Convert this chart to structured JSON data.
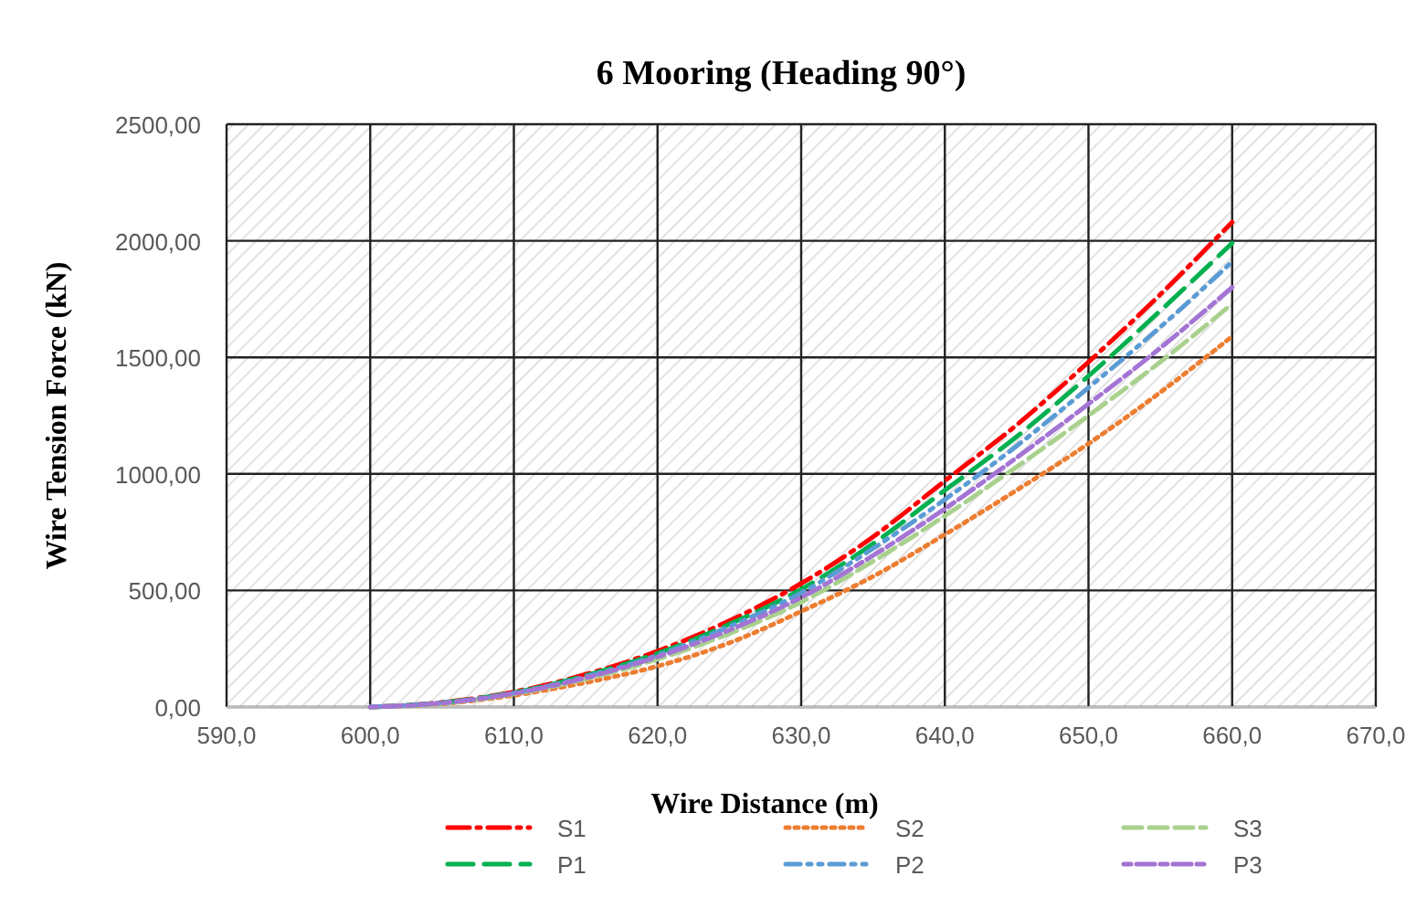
{
  "chart_data": {
    "type": "line",
    "title": "6 Mooring (Heading 90°)",
    "xlabel": "Wire Distance (m)",
    "ylabel": "Wire Tension Force (kN)",
    "x": [
      600,
      605,
      610,
      615,
      620,
      625,
      630,
      635,
      640,
      645,
      650,
      655,
      660
    ],
    "series": [
      {
        "name": "S1",
        "color": "#ff0000",
        "line_style": "dashed",
        "values": [
          0,
          20,
          65,
          140,
          240,
          370,
          530,
          730,
          970,
          1210,
          1480,
          1770,
          2080
        ]
      },
      {
        "name": "S2",
        "color": "#ed7d31",
        "line_style": "dotted",
        "values": [
          0,
          14,
          50,
          105,
          175,
          275,
          410,
          560,
          740,
          930,
          1130,
          1350,
          1590
        ]
      },
      {
        "name": "S3",
        "color": "#a9d18e",
        "line_style": "dashed",
        "values": [
          0,
          16,
          56,
          120,
          205,
          315,
          450,
          625,
          820,
          1030,
          1250,
          1480,
          1730
        ]
      },
      {
        "name": "P1",
        "color": "#00b050",
        "line_style": "dashed",
        "values": [
          0,
          19,
          62,
          135,
          230,
          355,
          505,
          700,
          930,
          1160,
          1420,
          1700,
          1990
        ]
      },
      {
        "name": "P2",
        "color": "#5b9bd5",
        "line_style": "dashed",
        "values": [
          0,
          18,
          60,
          130,
          222,
          345,
          490,
          680,
          890,
          1120,
          1370,
          1630,
          1910
        ]
      },
      {
        "name": "P3",
        "color": "#a374d4",
        "line_style": "dashed",
        "values": [
          0,
          17,
          58,
          125,
          215,
          330,
          470,
          650,
          850,
          1070,
          1300,
          1540,
          1800
        ]
      }
    ],
    "xlim": [
      590,
      670
    ],
    "xticks": [
      {
        "value": 590,
        "label": "590,0"
      },
      {
        "value": 600,
        "label": "600,0"
      },
      {
        "value": 610,
        "label": "610,0"
      },
      {
        "value": 620,
        "label": "620,0"
      },
      {
        "value": 630,
        "label": "630,0"
      },
      {
        "value": 640,
        "label": "640,0"
      },
      {
        "value": 650,
        "label": "650,0"
      },
      {
        "value": 660,
        "label": "660,0"
      },
      {
        "value": 670,
        "label": "670,0"
      }
    ],
    "ylim": [
      0,
      2500
    ],
    "yticks": [
      {
        "value": 0,
        "label": "0,00"
      },
      {
        "value": 500,
        "label": "500,00"
      },
      {
        "value": 1000,
        "label": "1000,00"
      },
      {
        "value": 1500,
        "label": "1500,00"
      },
      {
        "value": 2000,
        "label": "2000,00"
      },
      {
        "value": 2500,
        "label": "2500,00"
      }
    ],
    "grid": true,
    "legend": "bottom",
    "marker": "none"
  }
}
